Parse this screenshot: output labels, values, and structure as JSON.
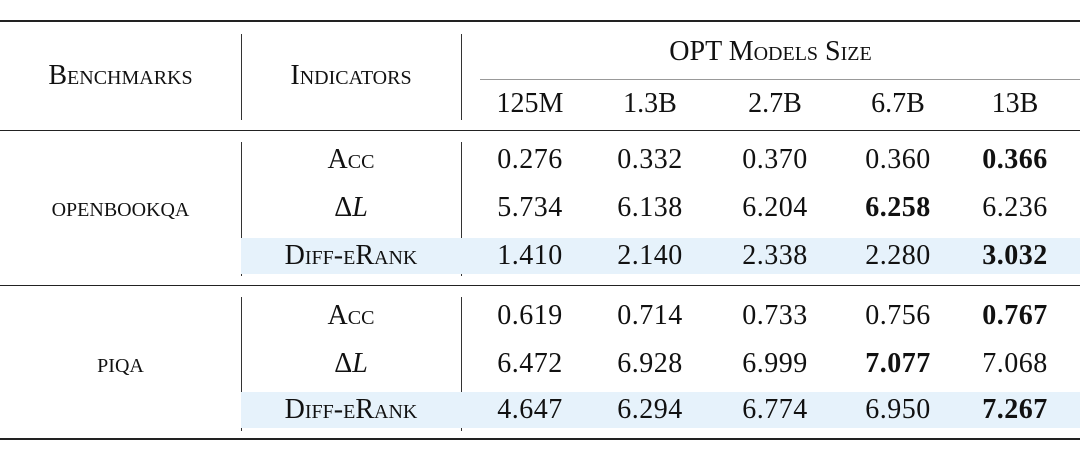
{
  "header": {
    "benchmarks": "Benchmarks",
    "indicators": "Indicators",
    "group_title": "OPT Models Size",
    "sizes": [
      "125M",
      "1.3B",
      "2.7B",
      "6.7B",
      "13B"
    ]
  },
  "groups": [
    {
      "benchmark": "openbookqa",
      "rows": [
        {
          "indicator": "Acc",
          "values": [
            "0.276",
            "0.332",
            "0.370",
            "0.360",
            "0.366"
          ],
          "bold_index": 4
        },
        {
          "indicator_prefix": "Δ",
          "indicator_var": "L",
          "values": [
            "5.734",
            "6.138",
            "6.204",
            "6.258",
            "6.236"
          ],
          "bold_index": 3
        },
        {
          "indicator": "Diff-eRank",
          "values": [
            "1.410",
            "2.140",
            "2.338",
            "2.280",
            "3.032"
          ],
          "bold_index": 4
        }
      ]
    },
    {
      "benchmark": "piqa",
      "rows": [
        {
          "indicator": "Acc",
          "values": [
            "0.619",
            "0.714",
            "0.733",
            "0.756",
            "0.767"
          ],
          "bold_index": 4
        },
        {
          "indicator_prefix": "Δ",
          "indicator_var": "L",
          "values": [
            "6.472",
            "6.928",
            "6.999",
            "7.077",
            "7.068"
          ],
          "bold_index": 3
        },
        {
          "indicator": "Diff-eRank",
          "values": [
            "4.647",
            "6.294",
            "6.774",
            "6.950",
            "7.267"
          ],
          "bold_index": 4
        }
      ]
    }
  ],
  "colors": {
    "highlight": "#e6f2fb",
    "rule": "#222222"
  }
}
